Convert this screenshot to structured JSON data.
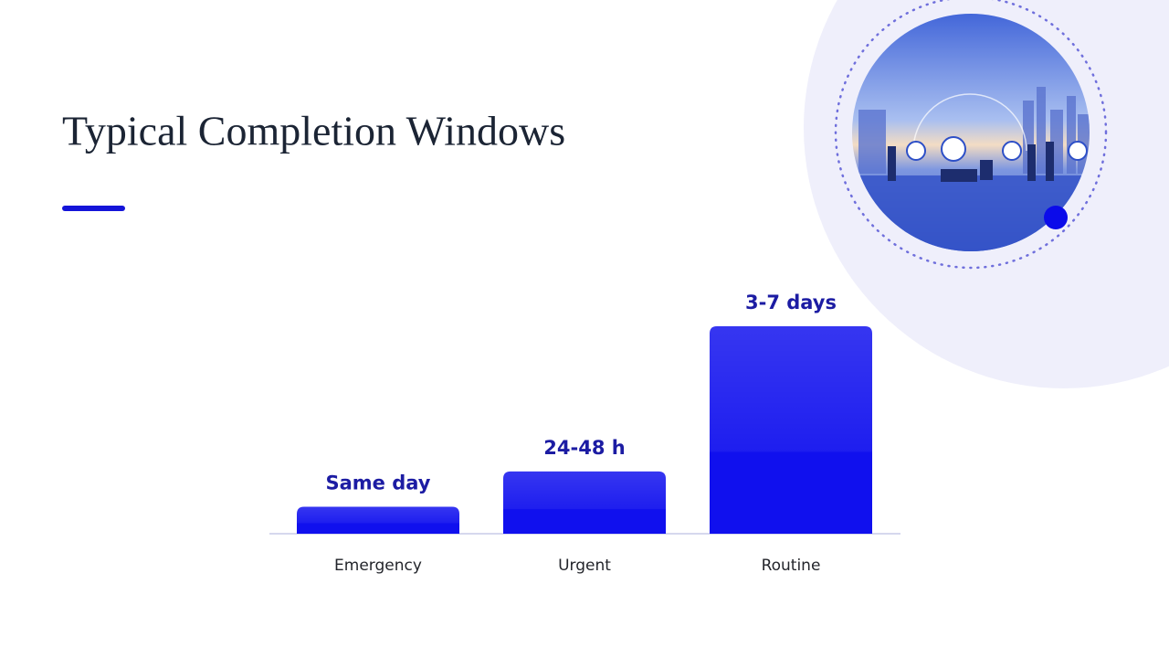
{
  "chart_data": {
    "type": "bar",
    "title": "Typical Completion Windows",
    "categories": [
      "Emergency",
      "Urgent",
      "Routine"
    ],
    "values": [
      13,
      30,
      100
    ],
    "bar_labels": [
      "Same day",
      "24-48 h",
      "3-7 days"
    ],
    "color": "#1010ee"
  }
}
